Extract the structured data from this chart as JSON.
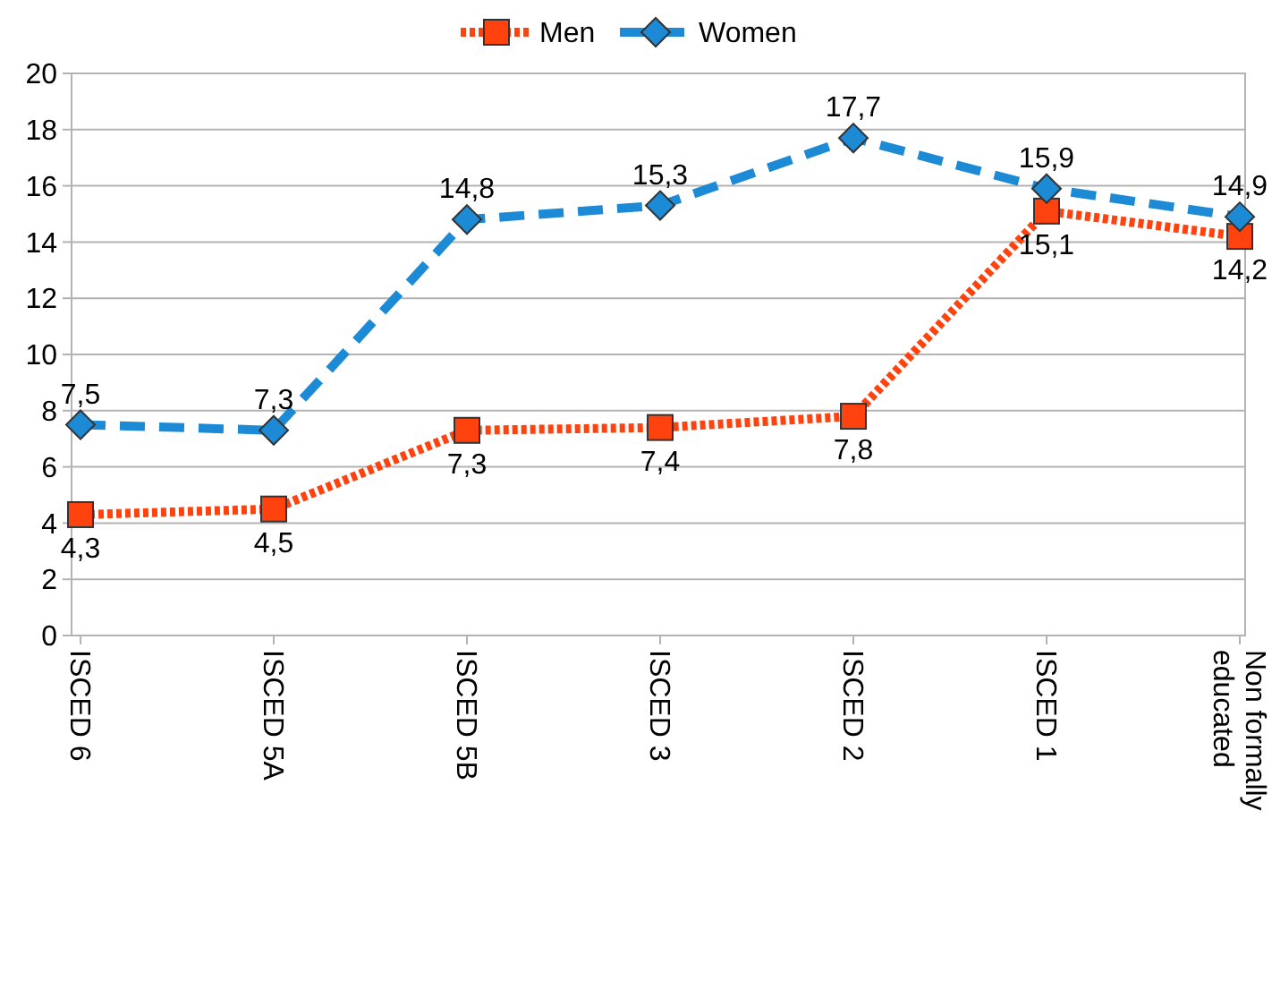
{
  "chart_data": {
    "type": "line",
    "categories": [
      "ISCED 6",
      "ISCED 5A",
      "ISCED 5B",
      "ISCED 3",
      "ISCED 2",
      "ISCED 1",
      "Non formally educated"
    ],
    "series": [
      {
        "name": "Men",
        "color": "#ff420e",
        "values": [
          4.3,
          4.5,
          7.3,
          7.4,
          7.8,
          15.1,
          14.2
        ],
        "value_labels": [
          "4,3",
          "4,5",
          "7,3",
          "7,4",
          "7,8",
          "15,1",
          "14,2"
        ],
        "marker": "square",
        "line_style": "dotted"
      },
      {
        "name": "Women",
        "color": "#1c8ad4",
        "values": [
          7.5,
          7.3,
          14.8,
          15.3,
          17.7,
          15.9,
          14.9
        ],
        "value_labels": [
          "7,5",
          "7,3",
          "14,8",
          "15,3",
          "17,7",
          "15,9",
          "14,9"
        ],
        "marker": "diamond",
        "line_style": "dashed"
      }
    ],
    "ylim": [
      0,
      20
    ],
    "yticks": [
      0,
      2,
      4,
      6,
      8,
      10,
      12,
      14,
      16,
      18,
      20
    ],
    "grid": "y",
    "legend": "top"
  }
}
